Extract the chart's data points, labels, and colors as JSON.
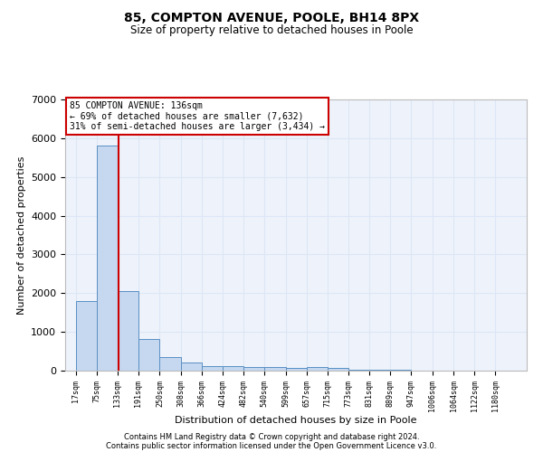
{
  "title1": "85, COMPTON AVENUE, POOLE, BH14 8PX",
  "title2": "Size of property relative to detached houses in Poole",
  "xlabel": "Distribution of detached houses by size in Poole",
  "ylabel": "Number of detached properties",
  "annotation_line1": "85 COMPTON AVENUE: 136sqm",
  "annotation_line2": "← 69% of detached houses are smaller (7,632)",
  "annotation_line3": "31% of semi-detached houses are larger (3,434) →",
  "property_size": 136,
  "bins": [
    17,
    75,
    133,
    191,
    250,
    308,
    366,
    424,
    482,
    540,
    599,
    657,
    715,
    773,
    831,
    889,
    947,
    1006,
    1064,
    1122,
    1180
  ],
  "bar_heights": [
    1800,
    5800,
    2050,
    820,
    350,
    200,
    120,
    110,
    100,
    100,
    65,
    100,
    65,
    30,
    20,
    15,
    10,
    8,
    5,
    5,
    3
  ],
  "bar_color": "#c5d8f0",
  "bar_edge_color": "#5a8fc3",
  "grid_color": "#dce6f5",
  "bg_color": "#eef3fb",
  "red_line_color": "#cc0000",
  "ylim": [
    0,
    7000
  ],
  "yticks": [
    0,
    1000,
    2000,
    3000,
    4000,
    5000,
    6000,
    7000
  ],
  "footer1": "Contains HM Land Registry data © Crown copyright and database right 2024.",
  "footer2": "Contains public sector information licensed under the Open Government Licence v3.0."
}
